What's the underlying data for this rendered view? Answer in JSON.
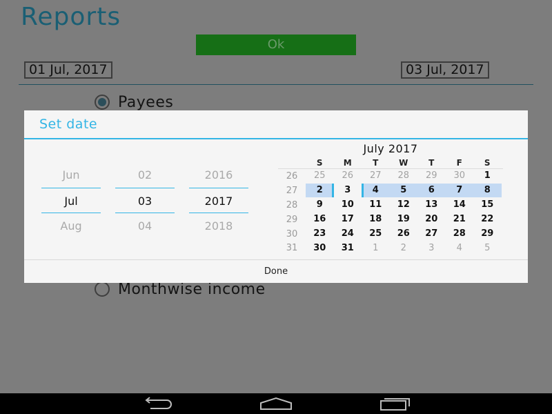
{
  "app": {
    "title": "Reports",
    "ok_label": "Ok",
    "date_from": "01 Jul, 2017",
    "date_to": "03 Jul, 2017",
    "radio_payees": "Payees",
    "radio_monthwise": "Monthwise income"
  },
  "dialog": {
    "title": "Set date",
    "spinners": {
      "month": {
        "prev": "Jun",
        "current": "Jul",
        "next": "Aug"
      },
      "day": {
        "prev": "02",
        "current": "03",
        "next": "04"
      },
      "year": {
        "prev": "2016",
        "current": "2017",
        "next": "2018"
      }
    },
    "calendar": {
      "month_label": "July 2017",
      "weekdays": [
        "S",
        "M",
        "T",
        "W",
        "T",
        "F",
        "S"
      ],
      "weeks": [
        {
          "wk": "26",
          "days": [
            "25",
            "26",
            "27",
            "28",
            "29",
            "30",
            "1"
          ]
        },
        {
          "wk": "27",
          "days": [
            "2",
            "3",
            "4",
            "5",
            "6",
            "7",
            "8"
          ]
        },
        {
          "wk": "28",
          "days": [
            "9",
            "10",
            "11",
            "12",
            "13",
            "14",
            "15"
          ]
        },
        {
          "wk": "29",
          "days": [
            "16",
            "17",
            "18",
            "19",
            "20",
            "21",
            "22"
          ]
        },
        {
          "wk": "30",
          "days": [
            "23",
            "24",
            "25",
            "26",
            "27",
            "28",
            "29"
          ]
        },
        {
          "wk": "31",
          "days": [
            "30",
            "31",
            "1",
            "2",
            "3",
            "4",
            "5"
          ]
        }
      ],
      "selected_date": "3"
    },
    "done_label": "Done"
  },
  "colors": {
    "accent": "#33b5e5",
    "selection": "#c3d9f3",
    "ok_button": "#166f16"
  },
  "navbar": {
    "icons": [
      "back-icon",
      "home-icon",
      "recents-icon"
    ]
  }
}
